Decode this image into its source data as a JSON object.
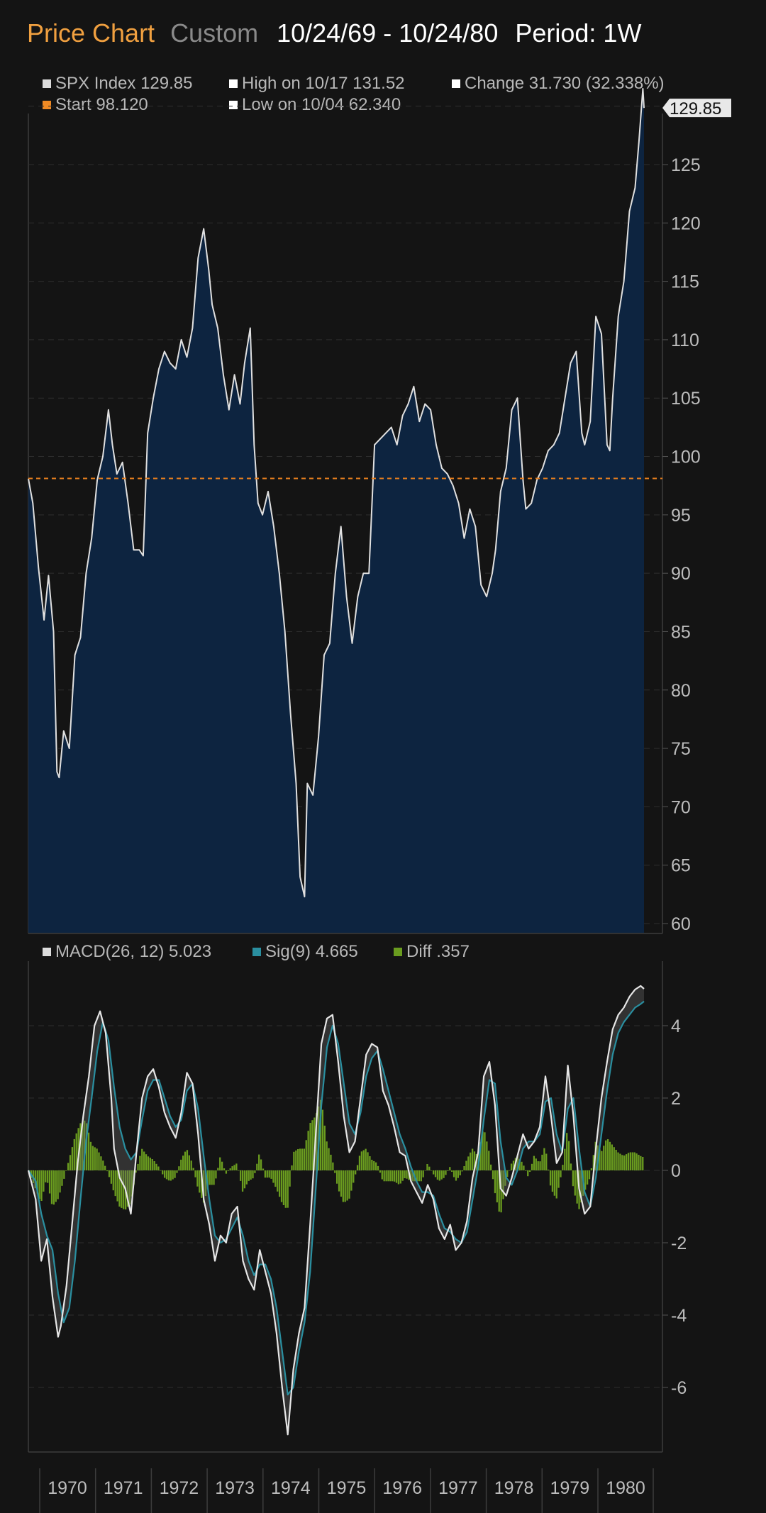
{
  "header": {
    "title": "Price Chart",
    "mode": "Custom",
    "range": "10/24/69 - 10/24/80",
    "period": "Period: 1W"
  },
  "price_legend": {
    "index_label": "SPX Index 129.85",
    "high_label": "High on 10/17 131.52",
    "change_label": "Change 31.730 (32.338%)",
    "start_label": "Start 98.120",
    "low_label": "Low on 10/04 62.340"
  },
  "macd_legend": {
    "macd_label": "MACD(26, 12) 5.023",
    "sig_label": "Sig(9) 4.665",
    "diff_label": "Diff .357"
  },
  "colors": {
    "background": "#141414",
    "price_line": "#e0e0e0",
    "price_fill": "#0d2440",
    "start_line": "#e87f1e",
    "macd_line": "#e6e6e6",
    "signal_line": "#2a8fa0",
    "diff_bars": "#6a9c1f",
    "title_orange": "#f0a040"
  },
  "chart_data": [
    {
      "type": "area",
      "title": "SPX Index",
      "y_ticks": [
        60,
        65,
        70,
        75,
        80,
        85,
        90,
        95,
        100,
        105,
        110,
        115,
        120,
        125
      ],
      "ylim": [
        59.3,
        133.5
      ],
      "start_value": 98.12,
      "last_value_label": "129.85",
      "series": [
        {
          "name": "SPX Index",
          "x": [
            1969.82,
            1969.9,
            1970.0,
            1970.1,
            1970.18,
            1970.27,
            1970.33,
            1970.37,
            1970.45,
            1970.55,
            1970.65,
            1970.75,
            1970.85,
            1970.95,
            1971.05,
            1971.15,
            1971.25,
            1971.32,
            1971.4,
            1971.5,
            1971.6,
            1971.7,
            1971.8,
            1971.87,
            1971.95,
            1972.05,
            1972.15,
            1972.25,
            1972.35,
            1972.45,
            1972.55,
            1972.65,
            1972.75,
            1972.85,
            1972.95,
            1973.04,
            1973.1,
            1973.2,
            1973.3,
            1973.4,
            1973.5,
            1973.6,
            1973.68,
            1973.78,
            1973.85,
            1973.92,
            1974.0,
            1974.1,
            1974.2,
            1974.3,
            1974.4,
            1974.5,
            1974.6,
            1974.67,
            1974.75,
            1974.8,
            1974.9,
            1975.0,
            1975.1,
            1975.2,
            1975.3,
            1975.4,
            1975.5,
            1975.6,
            1975.7,
            1975.8,
            1975.9,
            1976.0,
            1976.1,
            1976.2,
            1976.3,
            1976.4,
            1976.5,
            1976.6,
            1976.7,
            1976.8,
            1976.9,
            1977.0,
            1977.1,
            1977.2,
            1977.3,
            1977.4,
            1977.5,
            1977.6,
            1977.7,
            1977.8,
            1977.9,
            1978.0,
            1978.1,
            1978.16,
            1978.25,
            1978.35,
            1978.45,
            1978.55,
            1978.65,
            1978.7,
            1978.8,
            1978.9,
            1979.0,
            1979.1,
            1979.2,
            1979.3,
            1979.4,
            1979.5,
            1979.6,
            1979.7,
            1979.75,
            1979.85,
            1979.95,
            1980.05,
            1980.15,
            1980.2,
            1980.25,
            1980.35,
            1980.45,
            1980.55,
            1980.65,
            1980.72,
            1980.79,
            1980.81
          ],
          "y": [
            98.1,
            96.0,
            90.5,
            86.0,
            89.8,
            85.0,
            73.0,
            72.5,
            76.5,
            75.0,
            83.0,
            84.5,
            90.0,
            93.0,
            98.0,
            100.0,
            104.0,
            101.0,
            98.5,
            99.5,
            96.0,
            92.0,
            92.0,
            91.5,
            102.0,
            105.0,
            107.5,
            109.0,
            108.0,
            107.5,
            110.0,
            108.5,
            111.0,
            117.0,
            119.5,
            116.0,
            113.0,
            111.0,
            107.0,
            104.0,
            107.0,
            104.5,
            108.0,
            111.0,
            101.0,
            96.0,
            95.0,
            97.0,
            94.0,
            90.0,
            85.0,
            78.0,
            72.0,
            64.0,
            62.3,
            72.0,
            71.0,
            76.0,
            83.0,
            84.0,
            90.0,
            94.0,
            88.0,
            84.0,
            88.0,
            90.0,
            90.0,
            101.0,
            101.5,
            102.0,
            102.5,
            101.0,
            103.5,
            104.5,
            106.0,
            103.0,
            104.5,
            104.0,
            101.0,
            99.0,
            98.5,
            97.5,
            96.0,
            93.0,
            95.5,
            94.0,
            89.0,
            88.0,
            90.0,
            92.0,
            97.0,
            99.0,
            104.0,
            105.0,
            98.0,
            95.5,
            96.0,
            98.0,
            99.0,
            100.5,
            101.0,
            102.0,
            105.0,
            108.0,
            109.0,
            102.0,
            101.0,
            103.0,
            112.0,
            110.5,
            101.0,
            100.5,
            105.0,
            112.0,
            115.0,
            121.0,
            123.0,
            127.0,
            131.5,
            129.85
          ]
        }
      ]
    },
    {
      "type": "line",
      "title": "MACD(26, 12)",
      "y_ticks": [
        -6,
        -4,
        -2,
        0,
        2,
        4
      ],
      "ylim": [
        -7.8,
        5.8
      ],
      "x_ticks": [
        "1970",
        "1971",
        "1972",
        "1973",
        "1974",
        "1975",
        "1976",
        "1977",
        "1978",
        "1979",
        "1980"
      ],
      "series": [
        {
          "name": "MACD(26, 12)",
          "x": [
            1969.82,
            1969.95,
            1970.05,
            1970.15,
            1970.25,
            1970.35,
            1970.4,
            1970.5,
            1970.6,
            1970.7,
            1970.8,
            1970.9,
            1971.0,
            1971.1,
            1971.2,
            1971.3,
            1971.35,
            1971.45,
            1971.55,
            1971.65,
            1971.75,
            1971.85,
            1971.95,
            1972.05,
            1972.15,
            1972.25,
            1972.35,
            1972.45,
            1972.55,
            1972.65,
            1972.75,
            1972.85,
            1972.95,
            1973.05,
            1973.15,
            1973.25,
            1973.35,
            1973.45,
            1973.55,
            1973.65,
            1973.75,
            1973.85,
            1973.95,
            1974.05,
            1974.15,
            1974.25,
            1974.35,
            1974.45,
            1974.55,
            1974.65,
            1974.75,
            1974.85,
            1974.95,
            1975.05,
            1975.15,
            1975.25,
            1975.35,
            1975.45,
            1975.55,
            1975.65,
            1975.75,
            1975.85,
            1975.95,
            1976.05,
            1976.15,
            1976.25,
            1976.35,
            1976.45,
            1976.55,
            1976.65,
            1976.75,
            1976.85,
            1976.95,
            1977.05,
            1977.15,
            1977.25,
            1977.35,
            1977.45,
            1977.55,
            1977.65,
            1977.75,
            1977.85,
            1977.95,
            1978.05,
            1978.15,
            1978.25,
            1978.35,
            1978.45,
            1978.55,
            1978.65,
            1978.75,
            1978.85,
            1978.95,
            1979.05,
            1979.15,
            1979.25,
            1979.35,
            1979.45,
            1979.55,
            1979.65,
            1979.75,
            1979.85,
            1979.95,
            1980.05,
            1980.15,
            1980.25,
            1980.35,
            1980.45,
            1980.55,
            1980.65,
            1980.75,
            1980.81
          ],
          "y": [
            0.0,
            -0.8,
            -2.5,
            -1.9,
            -3.5,
            -4.6,
            -4.3,
            -3.2,
            -1.5,
            0.2,
            1.5,
            2.6,
            4.0,
            4.4,
            3.8,
            2.0,
            0.6,
            -0.2,
            -0.5,
            -1.2,
            0.5,
            2.0,
            2.6,
            2.8,
            2.3,
            1.6,
            1.2,
            0.9,
            1.6,
            2.7,
            2.4,
            1.0,
            -0.8,
            -1.5,
            -2.5,
            -1.8,
            -2.0,
            -1.2,
            -1.0,
            -2.5,
            -3.0,
            -3.3,
            -2.2,
            -2.8,
            -3.4,
            -4.5,
            -6.0,
            -7.3,
            -5.5,
            -4.5,
            -3.8,
            -1.5,
            1.0,
            3.5,
            4.2,
            4.3,
            3.0,
            1.5,
            0.5,
            0.8,
            2.0,
            3.2,
            3.5,
            3.4,
            2.2,
            1.8,
            1.2,
            0.5,
            0.4,
            -0.3,
            -0.6,
            -0.9,
            -0.4,
            -0.8,
            -1.6,
            -1.9,
            -1.5,
            -2.2,
            -2.0,
            -1.4,
            -0.2,
            0.5,
            2.6,
            3.0,
            1.8,
            -0.5,
            -0.7,
            -0.2,
            0.4,
            1.0,
            0.6,
            0.8,
            1.2,
            2.6,
            1.5,
            0.2,
            0.5,
            2.9,
            1.5,
            -0.5,
            -1.2,
            -1.0,
            0.6,
            2.0,
            3.0,
            3.9,
            4.3,
            4.5,
            4.8,
            5.0,
            5.1,
            5.02
          ]
        },
        {
          "name": "Sig(9)",
          "x": [
            1969.82,
            1969.95,
            1970.05,
            1970.15,
            1970.25,
            1970.35,
            1970.45,
            1970.55,
            1970.65,
            1970.75,
            1970.85,
            1970.95,
            1971.05,
            1971.15,
            1971.25,
            1971.35,
            1971.45,
            1971.55,
            1971.65,
            1971.75,
            1971.85,
            1971.95,
            1972.05,
            1972.15,
            1972.25,
            1972.35,
            1972.45,
            1972.55,
            1972.65,
            1972.75,
            1972.85,
            1972.95,
            1973.05,
            1973.15,
            1973.25,
            1973.35,
            1973.45,
            1973.55,
            1973.65,
            1973.75,
            1973.85,
            1973.95,
            1974.05,
            1974.15,
            1974.25,
            1974.35,
            1974.45,
            1974.55,
            1974.65,
            1974.75,
            1974.85,
            1974.95,
            1975.05,
            1975.15,
            1975.25,
            1975.35,
            1975.45,
            1975.55,
            1975.65,
            1975.75,
            1975.85,
            1975.95,
            1976.05,
            1976.15,
            1976.25,
            1976.35,
            1976.45,
            1976.55,
            1976.65,
            1976.75,
            1976.85,
            1976.95,
            1977.05,
            1977.15,
            1977.25,
            1977.35,
            1977.45,
            1977.55,
            1977.65,
            1977.75,
            1977.85,
            1977.95,
            1978.05,
            1978.15,
            1978.25,
            1978.35,
            1978.45,
            1978.55,
            1978.65,
            1978.75,
            1978.85,
            1978.95,
            1979.05,
            1979.15,
            1979.25,
            1979.35,
            1979.45,
            1979.55,
            1979.65,
            1979.75,
            1979.85,
            1979.95,
            1980.05,
            1980.15,
            1980.25,
            1980.35,
            1980.45,
            1980.55,
            1980.65,
            1980.75,
            1980.81
          ],
          "y": [
            0.0,
            -0.3,
            -1.2,
            -1.8,
            -2.2,
            -3.4,
            -4.2,
            -3.8,
            -2.5,
            -0.8,
            0.8,
            2.0,
            3.3,
            4.1,
            3.6,
            2.3,
            1.2,
            0.6,
            0.3,
            0.5,
            1.4,
            2.2,
            2.5,
            2.5,
            2.0,
            1.5,
            1.2,
            1.4,
            2.2,
            2.4,
            1.7,
            0.4,
            -0.8,
            -1.8,
            -2.0,
            -1.9,
            -1.6,
            -1.3,
            -1.8,
            -2.5,
            -2.9,
            -2.6,
            -2.6,
            -3.0,
            -3.8,
            -5.0,
            -6.2,
            -6.0,
            -5.0,
            -4.2,
            -2.8,
            -0.5,
            1.8,
            3.4,
            4.0,
            3.5,
            2.4,
            1.3,
            1.0,
            1.6,
            2.6,
            3.1,
            3.3,
            2.8,
            2.2,
            1.6,
            1.0,
            0.6,
            0.1,
            -0.3,
            -0.6,
            -0.6,
            -0.7,
            -1.2,
            -1.6,
            -1.7,
            -1.9,
            -2.0,
            -1.7,
            -0.8,
            0.1,
            1.4,
            2.5,
            2.4,
            0.8,
            -0.2,
            -0.4,
            0.0,
            0.6,
            0.8,
            0.8,
            1.0,
            1.9,
            2.0,
            1.0,
            0.5,
            1.7,
            2.0,
            0.6,
            -0.6,
            -1.0,
            -0.2,
            1.0,
            2.2,
            3.2,
            3.8,
            4.1,
            4.3,
            4.5,
            4.6,
            4.67
          ]
        },
        {
          "name": "Diff",
          "type": "bar",
          "x": [
            1969.82,
            1969.95,
            1970.05,
            1970.15,
            1970.25,
            1970.35,
            1970.45,
            1970.55,
            1970.65,
            1970.75,
            1970.85,
            1970.95,
            1971.05,
            1971.15,
            1971.25,
            1971.35,
            1971.45,
            1971.55,
            1971.65,
            1971.75,
            1971.85,
            1971.95,
            1972.05,
            1972.15,
            1972.25,
            1972.35,
            1972.45,
            1972.55,
            1972.65,
            1972.75,
            1972.85,
            1972.95,
            1973.05,
            1973.15,
            1973.25,
            1973.35,
            1973.45,
            1973.55,
            1973.65,
            1973.75,
            1973.85,
            1973.95,
            1974.05,
            1974.15,
            1974.25,
            1974.35,
            1974.45,
            1974.55,
            1974.65,
            1974.75,
            1974.85,
            1974.95,
            1975.05,
            1975.15,
            1975.25,
            1975.35,
            1975.45,
            1975.55,
            1975.65,
            1975.75,
            1975.85,
            1975.95,
            1976.05,
            1976.15,
            1976.25,
            1976.35,
            1976.45,
            1976.55,
            1976.65,
            1976.75,
            1976.85,
            1976.95,
            1977.05,
            1977.15,
            1977.25,
            1977.35,
            1977.45,
            1977.55,
            1977.65,
            1977.75,
            1977.85,
            1977.95,
            1978.05,
            1978.15,
            1978.25,
            1978.35,
            1978.45,
            1978.55,
            1978.65,
            1978.75,
            1978.85,
            1978.95,
            1979.05,
            1979.15,
            1979.25,
            1979.35,
            1979.45,
            1979.55,
            1979.65,
            1979.75,
            1979.85,
            1979.95,
            1980.05,
            1980.15,
            1980.25,
            1980.35,
            1980.45,
            1980.55,
            1980.65,
            1980.75,
            1980.81
          ],
          "y": [
            0.0,
            -0.5,
            -0.9,
            -0.2,
            -1.0,
            -0.8,
            -0.3,
            0.3,
            0.9,
            1.3,
            1.4,
            0.7,
            0.6,
            0.3,
            -0.1,
            -0.6,
            -1.0,
            -1.1,
            -0.9,
            0.0,
            0.6,
            0.4,
            0.3,
            0.1,
            -0.2,
            -0.3,
            -0.2,
            0.3,
            0.6,
            0.2,
            -0.5,
            -0.9,
            -0.4,
            -0.4,
            0.4,
            -0.1,
            0.1,
            0.2,
            -0.6,
            -0.3,
            -0.2,
            0.5,
            -0.2,
            -0.2,
            -0.5,
            -0.9,
            -1.1,
            0.5,
            0.6,
            0.6,
            1.3,
            1.5,
            2.0,
            0.8,
            0.3,
            -0.5,
            -0.9,
            -0.8,
            -0.2,
            0.5,
            0.6,
            0.3,
            0.2,
            -0.3,
            -0.3,
            -0.3,
            -0.4,
            -0.2,
            -0.3,
            -0.3,
            -0.3,
            0.2,
            -0.1,
            -0.3,
            -0.2,
            0.1,
            -0.3,
            -0.1,
            0.3,
            0.6,
            0.4,
            1.2,
            0.5,
            -0.6,
            -1.3,
            -0.3,
            0.2,
            0.4,
            0.2,
            -0.2,
            0.4,
            0.2,
            0.7,
            -0.5,
            -0.8,
            0.0,
            1.2,
            -0.5,
            -1.1,
            -0.6,
            -0.2,
            0.8,
            0.5,
            0.9,
            0.7,
            0.5,
            0.4,
            0.5,
            0.5,
            0.4,
            0.36
          ]
        }
      ]
    }
  ]
}
